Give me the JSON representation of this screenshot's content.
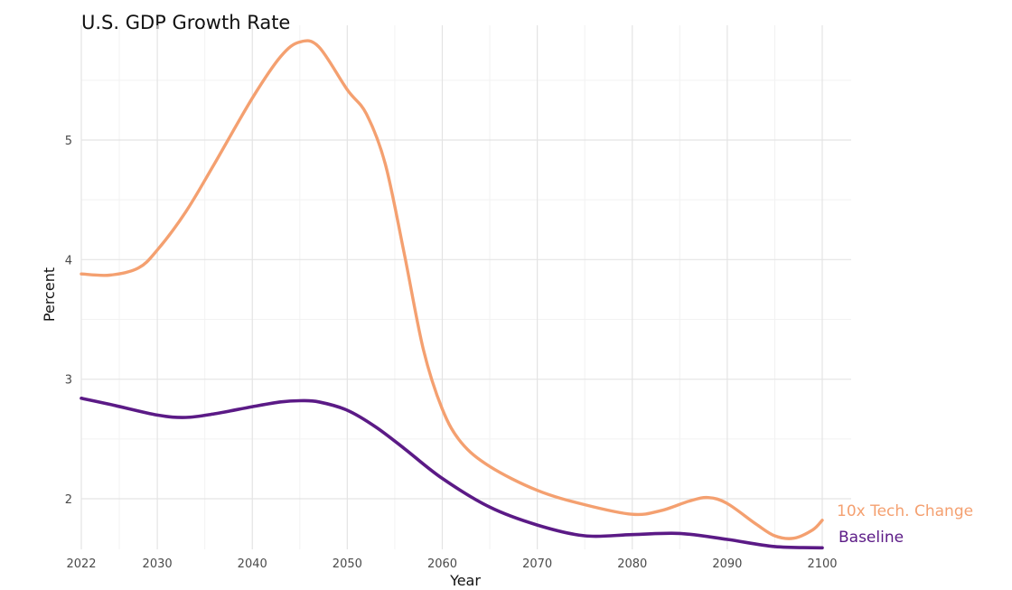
{
  "chart_data": {
    "type": "line",
    "title": "U.S. GDP Growth Rate",
    "xlabel": "Year",
    "ylabel": "Percent",
    "xlim": [
      2022,
      2102
    ],
    "ylim": [
      1.6,
      5.85
    ],
    "x_ticks": [
      2022,
      2030,
      2040,
      2050,
      2060,
      2070,
      2080,
      2090,
      2100
    ],
    "y_ticks": [
      2,
      3,
      4,
      5
    ],
    "grid": true,
    "legend": "direct labels at line ends (right)",
    "series": [
      {
        "name": "10x Tech. Change",
        "color": "#f4a070",
        "x": [
          2022,
          2025,
          2028,
          2030,
          2033,
          2036,
          2040,
          2043,
          2045,
          2047,
          2050,
          2052,
          2054,
          2056,
          2058,
          2060,
          2062,
          2065,
          2070,
          2075,
          2080,
          2083,
          2086,
          2088,
          2090,
          2093,
          2095,
          2097,
          2099,
          2100
        ],
        "values": [
          3.88,
          3.87,
          3.93,
          4.08,
          4.4,
          4.8,
          5.35,
          5.7,
          5.82,
          5.78,
          5.42,
          5.22,
          4.8,
          4.05,
          3.25,
          2.75,
          2.47,
          2.27,
          2.07,
          1.95,
          1.87,
          1.9,
          1.98,
          2.01,
          1.96,
          1.79,
          1.69,
          1.67,
          1.74,
          1.82
        ]
      },
      {
        "name": "Baseline",
        "color": "#5b1a86",
        "x": [
          2022,
          2025,
          2030,
          2033,
          2036,
          2040,
          2043,
          2045,
          2047,
          2050,
          2053,
          2056,
          2060,
          2065,
          2070,
          2075,
          2080,
          2085,
          2090,
          2095,
          2100
        ],
        "values": [
          2.84,
          2.79,
          2.7,
          2.68,
          2.71,
          2.77,
          2.81,
          2.82,
          2.81,
          2.74,
          2.6,
          2.42,
          2.17,
          1.93,
          1.78,
          1.69,
          1.7,
          1.71,
          1.66,
          1.6,
          1.59
        ]
      }
    ]
  }
}
